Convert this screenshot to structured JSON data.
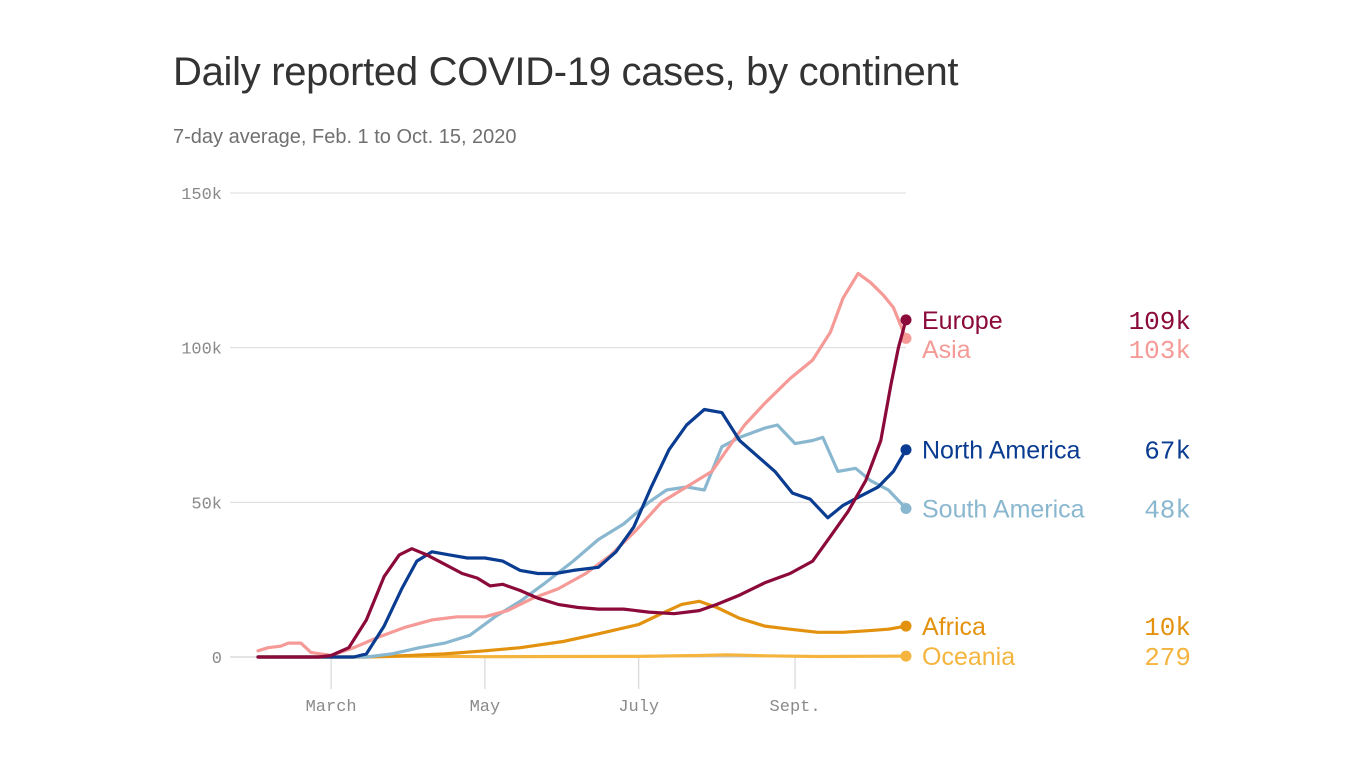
{
  "chart_data": {
    "type": "line",
    "title": "Daily reported COVID-19 cases, by continent",
    "subtitle": "7-day average, Feb. 1 to Oct. 15, 2020",
    "ylim": [
      0,
      150000
    ],
    "yticks": [
      {
        "value": 0,
        "label": "0"
      },
      {
        "value": 50000,
        "label": "50k"
      },
      {
        "value": 100000,
        "label": "100k"
      },
      {
        "value": 150000,
        "label": "150k"
      }
    ],
    "xlim": [
      "2020-02-01",
      "2020-10-15"
    ],
    "xticks": [
      {
        "date": "2020-03-01",
        "label": "March"
      },
      {
        "date": "2020-05-01",
        "label": "May"
      },
      {
        "date": "2020-07-01",
        "label": "July"
      },
      {
        "date": "2020-09-01",
        "label": "Sept."
      }
    ],
    "grid": true,
    "series": [
      {
        "name": "Europe",
        "value_label": "109k",
        "color": "#8b0a3a",
        "points": [
          [
            "2020-02-01",
            0
          ],
          [
            "2020-02-25",
            0
          ],
          [
            "2020-03-01",
            500
          ],
          [
            "2020-03-08",
            3000
          ],
          [
            "2020-03-15",
            12000
          ],
          [
            "2020-03-22",
            26000
          ],
          [
            "2020-03-28",
            33000
          ],
          [
            "2020-04-02",
            35000
          ],
          [
            "2020-04-08",
            33000
          ],
          [
            "2020-04-15",
            30000
          ],
          [
            "2020-04-22",
            27000
          ],
          [
            "2020-04-28",
            25500
          ],
          [
            "2020-05-03",
            23000
          ],
          [
            "2020-05-08",
            23500
          ],
          [
            "2020-05-15",
            21500
          ],
          [
            "2020-05-22",
            19000
          ],
          [
            "2020-05-30",
            17000
          ],
          [
            "2020-06-07",
            16000
          ],
          [
            "2020-06-15",
            15500
          ],
          [
            "2020-06-25",
            15500
          ],
          [
            "2020-07-05",
            14500
          ],
          [
            "2020-07-15",
            14000
          ],
          [
            "2020-07-25",
            15000
          ],
          [
            "2020-08-01",
            17000
          ],
          [
            "2020-08-10",
            20000
          ],
          [
            "2020-08-20",
            24000
          ],
          [
            "2020-08-30",
            27000
          ],
          [
            "2020-09-08",
            31000
          ],
          [
            "2020-09-15",
            39000
          ],
          [
            "2020-09-22",
            47000
          ],
          [
            "2020-09-29",
            57000
          ],
          [
            "2020-10-05",
            70000
          ],
          [
            "2020-10-09",
            88000
          ],
          [
            "2020-10-12",
            100000
          ],
          [
            "2020-10-15",
            109000
          ]
        ]
      },
      {
        "name": "Asia",
        "value_label": "103k",
        "color": "#f59a96",
        "points": [
          [
            "2020-02-01",
            2000
          ],
          [
            "2020-02-05",
            3000
          ],
          [
            "2020-02-10",
            3500
          ],
          [
            "2020-02-13",
            4500
          ],
          [
            "2020-02-18",
            4500
          ],
          [
            "2020-02-22",
            1500
          ],
          [
            "2020-03-01",
            500
          ],
          [
            "2020-03-10",
            3000
          ],
          [
            "2020-03-20",
            6500
          ],
          [
            "2020-03-30",
            9500
          ],
          [
            "2020-04-10",
            12000
          ],
          [
            "2020-04-20",
            13000
          ],
          [
            "2020-05-01",
            13000
          ],
          [
            "2020-05-10",
            15000
          ],
          [
            "2020-05-20",
            19000
          ],
          [
            "2020-05-30",
            22000
          ],
          [
            "2020-06-10",
            27000
          ],
          [
            "2020-06-20",
            33000
          ],
          [
            "2020-06-30",
            41000
          ],
          [
            "2020-07-10",
            50000
          ],
          [
            "2020-07-20",
            55000
          ],
          [
            "2020-07-30",
            60000
          ],
          [
            "2020-08-05",
            67000
          ],
          [
            "2020-08-12",
            75000
          ],
          [
            "2020-08-20",
            82000
          ],
          [
            "2020-08-30",
            90000
          ],
          [
            "2020-09-08",
            96000
          ],
          [
            "2020-09-15",
            105000
          ],
          [
            "2020-09-20",
            116000
          ],
          [
            "2020-09-26",
            124000
          ],
          [
            "2020-10-01",
            121000
          ],
          [
            "2020-10-06",
            117000
          ],
          [
            "2020-10-10",
            113000
          ],
          [
            "2020-10-15",
            103000
          ]
        ]
      },
      {
        "name": "North America",
        "value_label": "67k",
        "color": "#0a3c91",
        "points": [
          [
            "2020-02-01",
            0
          ],
          [
            "2020-03-10",
            0
          ],
          [
            "2020-03-15",
            1000
          ],
          [
            "2020-03-22",
            10000
          ],
          [
            "2020-03-29",
            22000
          ],
          [
            "2020-04-04",
            31000
          ],
          [
            "2020-04-10",
            34000
          ],
          [
            "2020-04-17",
            33000
          ],
          [
            "2020-04-24",
            32000
          ],
          [
            "2020-05-01",
            32000
          ],
          [
            "2020-05-08",
            31000
          ],
          [
            "2020-05-15",
            28000
          ],
          [
            "2020-05-22",
            27000
          ],
          [
            "2020-05-29",
            27000
          ],
          [
            "2020-06-05",
            28000
          ],
          [
            "2020-06-15",
            29000
          ],
          [
            "2020-06-22",
            34000
          ],
          [
            "2020-06-29",
            42000
          ],
          [
            "2020-07-06",
            55000
          ],
          [
            "2020-07-13",
            67000
          ],
          [
            "2020-07-20",
            75000
          ],
          [
            "2020-07-27",
            80000
          ],
          [
            "2020-08-03",
            79000
          ],
          [
            "2020-08-10",
            70000
          ],
          [
            "2020-08-17",
            65000
          ],
          [
            "2020-08-24",
            60000
          ],
          [
            "2020-08-31",
            53000
          ],
          [
            "2020-09-07",
            51000
          ],
          [
            "2020-09-14",
            45000
          ],
          [
            "2020-09-20",
            49000
          ],
          [
            "2020-09-27",
            52000
          ],
          [
            "2020-10-04",
            55000
          ],
          [
            "2020-10-10",
            60000
          ],
          [
            "2020-10-15",
            67000
          ]
        ]
      },
      {
        "name": "South America",
        "value_label": "48k",
        "color": "#8ab7d0",
        "points": [
          [
            "2020-02-01",
            0
          ],
          [
            "2020-03-15",
            0
          ],
          [
            "2020-03-25",
            1000
          ],
          [
            "2020-04-05",
            3000
          ],
          [
            "2020-04-15",
            4500
          ],
          [
            "2020-04-25",
            7000
          ],
          [
            "2020-05-05",
            13000
          ],
          [
            "2020-05-15",
            18000
          ],
          [
            "2020-05-25",
            24000
          ],
          [
            "2020-06-05",
            31000
          ],
          [
            "2020-06-15",
            38000
          ],
          [
            "2020-06-25",
            43000
          ],
          [
            "2020-07-05",
            50000
          ],
          [
            "2020-07-12",
            54000
          ],
          [
            "2020-07-20",
            55000
          ],
          [
            "2020-07-27",
            54000
          ],
          [
            "2020-08-03",
            68000
          ],
          [
            "2020-08-10",
            71000
          ],
          [
            "2020-08-20",
            74000
          ],
          [
            "2020-08-25",
            75000
          ],
          [
            "2020-09-01",
            69000
          ],
          [
            "2020-09-08",
            70000
          ],
          [
            "2020-09-12",
            71000
          ],
          [
            "2020-09-18",
            60000
          ],
          [
            "2020-09-25",
            61000
          ],
          [
            "2020-10-01",
            57000
          ],
          [
            "2020-10-08",
            54000
          ],
          [
            "2020-10-15",
            48000
          ]
        ]
      },
      {
        "name": "Africa",
        "value_label": "10k",
        "color": "#e3920f",
        "points": [
          [
            "2020-02-01",
            0
          ],
          [
            "2020-03-15",
            0
          ],
          [
            "2020-04-01",
            500
          ],
          [
            "2020-04-15",
            1000
          ],
          [
            "2020-05-01",
            2000
          ],
          [
            "2020-05-15",
            3000
          ],
          [
            "2020-06-01",
            5000
          ],
          [
            "2020-06-15",
            7500
          ],
          [
            "2020-07-01",
            10500
          ],
          [
            "2020-07-10",
            14000
          ],
          [
            "2020-07-18",
            17000
          ],
          [
            "2020-07-25",
            18000
          ],
          [
            "2020-08-01",
            16000
          ],
          [
            "2020-08-10",
            12500
          ],
          [
            "2020-08-20",
            10000
          ],
          [
            "2020-08-30",
            9000
          ],
          [
            "2020-09-10",
            8000
          ],
          [
            "2020-09-20",
            8000
          ],
          [
            "2020-09-30",
            8500
          ],
          [
            "2020-10-08",
            9000
          ],
          [
            "2020-10-15",
            10000
          ]
        ]
      },
      {
        "name": "Oceania",
        "value_label": "279",
        "color": "#f5b43d",
        "points": [
          [
            "2020-02-01",
            0
          ],
          [
            "2020-03-15",
            0
          ],
          [
            "2020-04-01",
            300
          ],
          [
            "2020-05-01",
            100
          ],
          [
            "2020-07-01",
            200
          ],
          [
            "2020-07-25",
            500
          ],
          [
            "2020-08-05",
            700
          ],
          [
            "2020-08-20",
            400
          ],
          [
            "2020-09-10",
            150
          ],
          [
            "2020-10-15",
            279
          ]
        ]
      }
    ]
  }
}
